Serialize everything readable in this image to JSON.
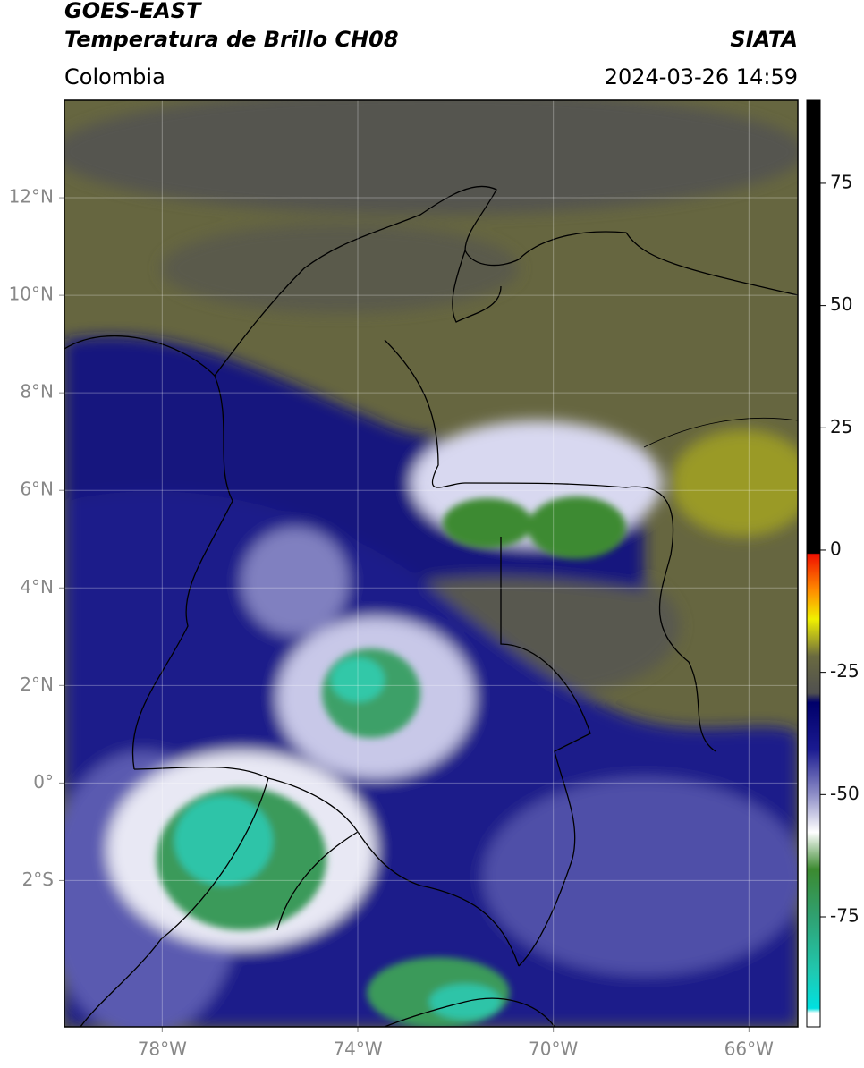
{
  "header": {
    "title_line1": "GOES-EAST",
    "title_line2": "Temperatura de Brillo CH08",
    "source": "SIATA",
    "region": "Colombia",
    "timestamp": "2024-03-26 14:59"
  },
  "map": {
    "xlim": [
      -80,
      -65
    ],
    "ylim": [
      -5,
      14
    ],
    "xticks": [
      {
        "value": -78,
        "label": "78°W"
      },
      {
        "value": -74,
        "label": "74°W"
      },
      {
        "value": -70,
        "label": "70°W"
      },
      {
        "value": -66,
        "label": "66°W"
      }
    ],
    "yticks": [
      {
        "value": 12,
        "label": "12°N"
      },
      {
        "value": 10,
        "label": "10°N"
      },
      {
        "value": 8,
        "label": "8°N"
      },
      {
        "value": 6,
        "label": "6°N"
      },
      {
        "value": 4,
        "label": "4°N"
      },
      {
        "value": 2,
        "label": "2°N"
      },
      {
        "value": 0,
        "label": "0°"
      },
      {
        "value": -2,
        "label": "2°S"
      }
    ],
    "grid": true
  },
  "colorbar": {
    "lim": [
      -97.5,
      92
    ],
    "ticks": [
      75,
      50,
      25,
      0,
      -25,
      -50,
      -75
    ]
  }
}
